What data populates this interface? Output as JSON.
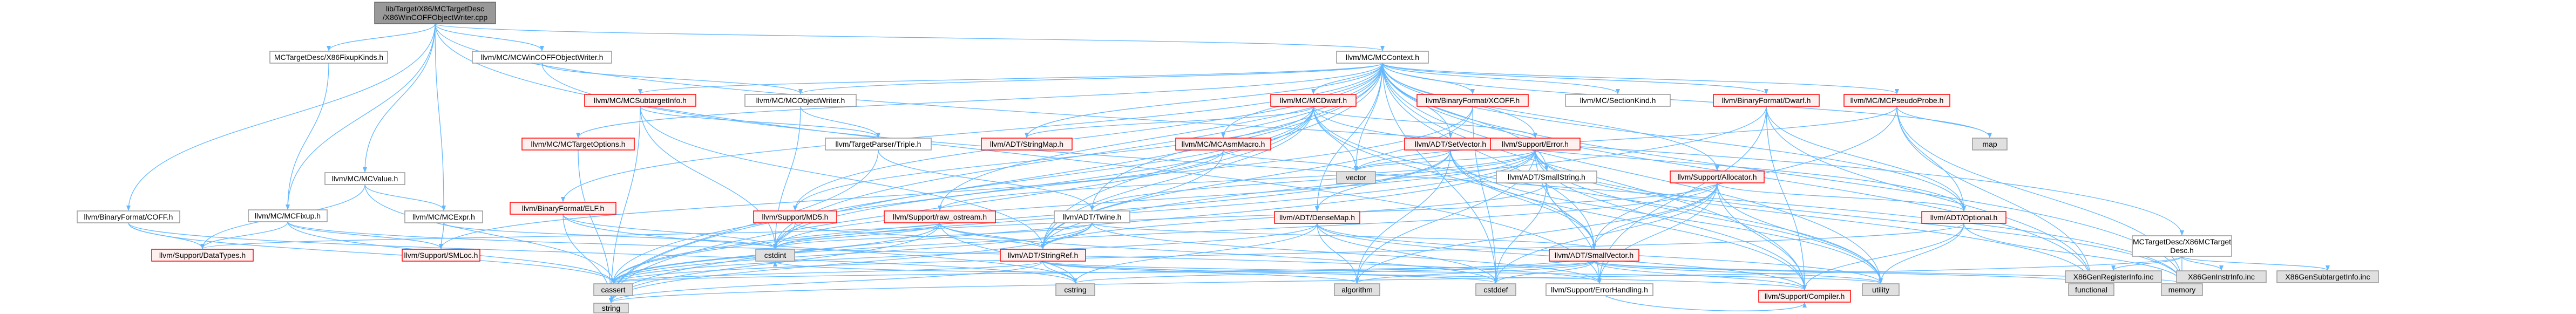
{
  "palette": {
    "root_fill": "#999999",
    "root_stroke": "#666666",
    "root_text": "#000000",
    "normal_fill": "#ffffff",
    "normal_stroke": "#999999",
    "normal_text": "#000000",
    "red_fill": "#fff0f0",
    "red_stroke": "#ff0000",
    "red_text": "#000000",
    "gray_fill": "#e0e0e0",
    "gray_stroke": "#999999",
    "gray_text": "#000000",
    "edge": "#63b8ff"
  },
  "nodes": {
    "root": {
      "lines": [
        "lib/Target/X86/MCTargetDesc",
        "/X86WinCOFFObjectWriter.cpp"
      ],
      "style": "root"
    },
    "mcfixup": {
      "lines": [
        "llvm/MC/MCFixup.h"
      ],
      "style": "normal"
    },
    "x86fixupkinds": {
      "lines": [
        "MCTargetDesc/X86FixupKinds.h"
      ],
      "style": "normal"
    },
    "mcvalue": {
      "lines": [
        "llvm/MC/MCValue.h"
      ],
      "style": "normal"
    },
    "mcwincoff": {
      "lines": [
        "llvm/MC/MCWinCOFFObjectWriter.h"
      ],
      "style": "normal"
    },
    "mccontext": {
      "lines": [
        "llvm/MC/MCContext.h"
      ],
      "style": "normal"
    },
    "x86mctargetdesc": {
      "lines": [
        "MCTargetDesc/X86MCTarget",
        "Desc.h"
      ],
      "style": "normal"
    },
    "binfmt_coff": {
      "lines": [
        "llvm/BinaryFormat/COFF.h"
      ],
      "style": "normal"
    },
    "mcexpr": {
      "lines": [
        "llvm/MC/MCExpr.h"
      ],
      "style": "normal"
    },
    "mcsubtargetinfo": {
      "lines": [
        "llvm/MC/MCSubtargetInfo.h"
      ],
      "style": "red"
    },
    "mctargetoptions": {
      "lines": [
        "llvm/MC/MCTargetOptions.h"
      ],
      "style": "red"
    },
    "mcobjectwriter": {
      "lines": [
        "llvm/MC/MCObjectWriter.h"
      ],
      "style": "normal"
    },
    "triple": {
      "lines": [
        "llvm/TargetParser/Triple.h"
      ],
      "style": "normal"
    },
    "binfmt_elf": {
      "lines": [
        "llvm/BinaryFormat/ELF.h"
      ],
      "style": "red"
    },
    "mcdwarf": {
      "lines": [
        "llvm/MC/MCDwarf.h"
      ],
      "style": "red"
    },
    "stringmap": {
      "lines": [
        "llvm/ADT/StringMap.h"
      ],
      "style": "red"
    },
    "mcasmmacro": {
      "lines": [
        "llvm/MC/MCAsmMacro.h"
      ],
      "style": "red"
    },
    "md5": {
      "lines": [
        "llvm/Support/MD5.h"
      ],
      "style": "red"
    },
    "raw_ostream": {
      "lines": [
        "llvm/Support/raw_ostream.h"
      ],
      "style": "red"
    },
    "binfmt_xcoff": {
      "lines": [
        "llvm/BinaryFormat/XCOFF.h"
      ],
      "style": "red"
    },
    "setvector": {
      "lines": [
        "llvm/ADT/SetVector.h"
      ],
      "style": "red"
    },
    "twine": {
      "lines": [
        "llvm/ADT/Twine.h"
      ],
      "style": "normal"
    },
    "sectionkind": {
      "lines": [
        "llvm/MC/SectionKind.h"
      ],
      "style": "normal"
    },
    "error_h": {
      "lines": [
        "llvm/Support/Error.h"
      ],
      "style": "red"
    },
    "smallstring": {
      "lines": [
        "llvm/ADT/SmallString.h"
      ],
      "style": "normal"
    },
    "binfmt_dwarf": {
      "lines": [
        "llvm/BinaryFormat/Dwarf.h"
      ],
      "style": "red"
    },
    "mcpseudoprobe": {
      "lines": [
        "llvm/MC/MCPseudoProbe.h"
      ],
      "style": "red"
    },
    "allocator": {
      "lines": [
        "llvm/Support/Allocator.h"
      ],
      "style": "red"
    },
    "densemap": {
      "lines": [
        "llvm/ADT/DenseMap.h"
      ],
      "style": "red"
    },
    "stringref": {
      "lines": [
        "llvm/ADT/StringRef.h"
      ],
      "style": "red"
    },
    "smallvector": {
      "lines": [
        "llvm/ADT/SmallVector.h"
      ],
      "style": "red"
    },
    "optional": {
      "lines": [
        "llvm/ADT/Optional.h"
      ],
      "style": "red"
    },
    "datatypes": {
      "lines": [
        "llvm/Support/DataTypes.h"
      ],
      "style": "red"
    },
    "smloc": {
      "lines": [
        "llvm/Support/SMLoc.h"
      ],
      "style": "red"
    },
    "errorhandling": {
      "lines": [
        "llvm/Support/ErrorHandling.h"
      ],
      "style": "normal"
    },
    "compiler": {
      "lines": [
        "llvm/Support/Compiler.h"
      ],
      "style": "red"
    },
    "vector": {
      "lines": [
        "vector"
      ],
      "style": "gray"
    },
    "map": {
      "lines": [
        "map"
      ],
      "style": "gray"
    },
    "cstdint": {
      "lines": [
        "cstdint"
      ],
      "style": "gray"
    },
    "cassert": {
      "lines": [
        "cassert"
      ],
      "style": "gray"
    },
    "cstring": {
      "lines": [
        "cstring"
      ],
      "style": "gray"
    },
    "algorithm": {
      "lines": [
        "algorithm"
      ],
      "style": "gray"
    },
    "cstddef": {
      "lines": [
        "cstddef"
      ],
      "style": "gray"
    },
    "utility": {
      "lines": [
        "utility"
      ],
      "style": "gray"
    },
    "functional": {
      "lines": [
        "functional"
      ],
      "style": "gray"
    },
    "memory": {
      "lines": [
        "memory"
      ],
      "style": "gray"
    },
    "string": {
      "lines": [
        "string"
      ],
      "style": "gray"
    },
    "x86genregisterinfo": {
      "lines": [
        "X86GenRegisterInfo.inc"
      ],
      "style": "gray"
    },
    "x86geninstrinfo": {
      "lines": [
        "X86GenInstrInfo.inc"
      ],
      "style": "gray"
    },
    "x86gensubtargetinfo": {
      "lines": [
        "X86GenSubtargetInfo.inc"
      ],
      "style": "gray"
    }
  },
  "edges": [
    [
      "root",
      "mcfixup"
    ],
    [
      "root",
      "x86fixupkinds"
    ],
    [
      "root",
      "mcvalue"
    ],
    [
      "root",
      "mcwincoff"
    ],
    [
      "root",
      "mccontext"
    ],
    [
      "root",
      "x86mctargetdesc"
    ],
    [
      "root",
      "binfmt_coff"
    ],
    [
      "root",
      "mcexpr"
    ],
    [
      "root",
      "errorhandling"
    ],
    [
      "x86fixupkinds",
      "mcfixup"
    ],
    [
      "mcfixup",
      "datatypes"
    ],
    [
      "mcfixup",
      "smloc"
    ],
    [
      "mcfixup",
      "errorhandling"
    ],
    [
      "mcfixup",
      "cassert"
    ],
    [
      "mcvalue",
      "mcexpr"
    ],
    [
      "mcvalue",
      "datatypes"
    ],
    [
      "mcvalue",
      "cassert"
    ],
    [
      "mcexpr",
      "smloc"
    ],
    [
      "mcexpr",
      "cstdint"
    ],
    [
      "mcwincoff",
      "mcobjectwriter"
    ],
    [
      "mcwincoff",
      "memory"
    ],
    [
      "mccontext",
      "mcsubtargetinfo"
    ],
    [
      "mccontext",
      "mctargetoptions"
    ],
    [
      "mccontext",
      "mcobjectwriter"
    ],
    [
      "mccontext",
      "binfmt_elf"
    ],
    [
      "mccontext",
      "mcdwarf"
    ],
    [
      "mccontext",
      "stringmap"
    ],
    [
      "mccontext",
      "mcasmmacro"
    ],
    [
      "mccontext",
      "md5"
    ],
    [
      "mccontext",
      "raw_ostream"
    ],
    [
      "mccontext",
      "binfmt_xcoff"
    ],
    [
      "mccontext",
      "setvector"
    ],
    [
      "mccontext",
      "twine"
    ],
    [
      "mccontext",
      "sectionkind"
    ],
    [
      "mccontext",
      "error_h"
    ],
    [
      "mccontext",
      "smallstring"
    ],
    [
      "mccontext",
      "binfmt_dwarf"
    ],
    [
      "mccontext",
      "mcpseudoprobe"
    ],
    [
      "mccontext",
      "allocator"
    ],
    [
      "mccontext",
      "densemap"
    ],
    [
      "mccontext",
      "stringref"
    ],
    [
      "mccontext",
      "smallvector"
    ],
    [
      "mccontext",
      "optional"
    ],
    [
      "mccontext",
      "vector"
    ],
    [
      "mccontext",
      "map"
    ],
    [
      "mccontext",
      "cstddef"
    ],
    [
      "mccontext",
      "cstdint"
    ],
    [
      "mccontext",
      "utility"
    ],
    [
      "mccontext",
      "functional"
    ],
    [
      "mccontext",
      "memory"
    ],
    [
      "mccontext",
      "string"
    ],
    [
      "mccontext",
      "compiler"
    ],
    [
      "mcsubtargetinfo",
      "triple"
    ],
    [
      "mcsubtargetinfo",
      "stringref"
    ],
    [
      "mcsubtargetinfo",
      "cstdint"
    ],
    [
      "mcsubtargetinfo",
      "string"
    ],
    [
      "mctargetoptions",
      "string"
    ],
    [
      "mcobjectwriter",
      "triple"
    ],
    [
      "mcobjectwriter",
      "cstdint"
    ],
    [
      "triple",
      "twine"
    ],
    [
      "triple",
      "string"
    ],
    [
      "binfmt_elf",
      "cstdint"
    ],
    [
      "binfmt_elf",
      "cstring"
    ],
    [
      "binfmt_elf",
      "string"
    ],
    [
      "mcdwarf",
      "stringmap"
    ],
    [
      "mcdwarf",
      "md5"
    ],
    [
      "mcdwarf",
      "smallvector"
    ],
    [
      "mcdwarf",
      "stringref"
    ],
    [
      "mcdwarf",
      "error_h"
    ],
    [
      "mcdwarf",
      "vector"
    ],
    [
      "mcdwarf",
      "cassert"
    ],
    [
      "mcdwarf",
      "cstdint"
    ],
    [
      "mcdwarf",
      "string"
    ],
    [
      "mcdwarf",
      "utility"
    ],
    [
      "mcdwarf",
      "optional"
    ],
    [
      "mcasmmacro",
      "smloc"
    ],
    [
      "mcasmmacro",
      "stringref"
    ],
    [
      "mcasmmacro",
      "vector"
    ],
    [
      "md5",
      "stringref"
    ],
    [
      "md5",
      "cstdint"
    ],
    [
      "raw_ostream",
      "stringref"
    ],
    [
      "raw_ostream",
      "datatypes"
    ],
    [
      "raw_ostream",
      "cassert"
    ],
    [
      "raw_ostream",
      "cstddef"
    ],
    [
      "raw_ostream",
      "cstdint"
    ],
    [
      "raw_ostream",
      "cstring"
    ],
    [
      "raw_ostream",
      "string"
    ],
    [
      "binfmt_xcoff",
      "stringref"
    ],
    [
      "binfmt_xcoff",
      "cstddef"
    ],
    [
      "binfmt_xcoff",
      "cstdint"
    ],
    [
      "setvector",
      "densemap"
    ],
    [
      "setvector",
      "smallvector"
    ],
    [
      "setvector",
      "compiler"
    ],
    [
      "setvector",
      "algorithm"
    ],
    [
      "setvector",
      "cassert"
    ],
    [
      "setvector",
      "vector"
    ],
    [
      "setvector",
      "utility"
    ],
    [
      "twine",
      "smallvector"
    ],
    [
      "twine",
      "stringref"
    ],
    [
      "twine",
      "errorhandling"
    ],
    [
      "twine",
      "cassert"
    ],
    [
      "twine",
      "cstdint"
    ],
    [
      "twine",
      "string"
    ],
    [
      "error_h",
      "errorhandling"
    ],
    [
      "error_h",
      "compiler"
    ],
    [
      "error_h",
      "raw_ostream"
    ],
    [
      "error_h",
      "twine"
    ],
    [
      "error_h",
      "algorithm"
    ],
    [
      "error_h",
      "cassert"
    ],
    [
      "error_h",
      "cstdint"
    ],
    [
      "error_h",
      "functional"
    ],
    [
      "error_h",
      "memory"
    ],
    [
      "error_h",
      "string"
    ],
    [
      "error_h",
      "utility"
    ],
    [
      "error_h",
      "vector"
    ],
    [
      "smallstring",
      "smallvector"
    ],
    [
      "smallstring",
      "stringref"
    ],
    [
      "smallstring",
      "cstddef"
    ],
    [
      "binfmt_dwarf",
      "errorhandling"
    ],
    [
      "binfmt_dwarf",
      "compiler"
    ],
    [
      "binfmt_dwarf",
      "optional"
    ],
    [
      "binfmt_dwarf",
      "stringref"
    ],
    [
      "binfmt_dwarf",
      "functional"
    ],
    [
      "mcpseudoprobe",
      "smallvector"
    ],
    [
      "mcpseudoprobe",
      "optional"
    ],
    [
      "mcpseudoprobe",
      "functional"
    ],
    [
      "mcpseudoprobe",
      "memory"
    ],
    [
      "mcpseudoprobe",
      "vector"
    ],
    [
      "mcpseudoprobe",
      "map"
    ],
    [
      "allocator",
      "errorhandling"
    ],
    [
      "allocator",
      "compiler"
    ],
    [
      "allocator",
      "smallvector"
    ],
    [
      "allocator",
      "algorithm"
    ],
    [
      "allocator",
      "cassert"
    ],
    [
      "allocator",
      "cstddef"
    ],
    [
      "allocator",
      "cstdint"
    ],
    [
      "allocator",
      "iterator_none"
    ],
    [
      "allocator",
      "utility"
    ],
    [
      "allocator",
      "optional"
    ],
    [
      "densemap",
      "compiler"
    ],
    [
      "densemap",
      "algorithm"
    ],
    [
      "densemap",
      "cassert"
    ],
    [
      "densemap",
      "cstddef"
    ],
    [
      "densemap",
      "utility"
    ],
    [
      "densemap",
      "cstring"
    ],
    [
      "stringref",
      "compiler"
    ],
    [
      "stringref",
      "algorithm"
    ],
    [
      "stringref",
      "cassert"
    ],
    [
      "stringref",
      "cstddef"
    ],
    [
      "stringref",
      "cstring"
    ],
    [
      "stringref",
      "string"
    ],
    [
      "stringref",
      "utility"
    ],
    [
      "smallvector",
      "compiler"
    ],
    [
      "smallvector",
      "algorithm"
    ],
    [
      "smallvector",
      "cassert"
    ],
    [
      "smallvector",
      "cstddef"
    ],
    [
      "smallvector",
      "cstring"
    ],
    [
      "smallvector",
      "functional"
    ],
    [
      "smallvector",
      "memory"
    ],
    [
      "smallvector",
      "utility"
    ],
    [
      "smallvector",
      "cstdint"
    ],
    [
      "optional",
      "compiler"
    ],
    [
      "optional",
      "cassert"
    ],
    [
      "optional",
      "memory"
    ],
    [
      "optional",
      "utility"
    ],
    [
      "errorhandling",
      "compiler"
    ],
    [
      "x86mctargetdesc",
      "memory"
    ],
    [
      "x86mctargetdesc",
      "string"
    ],
    [
      "x86mctargetdesc",
      "x86genregisterinfo"
    ],
    [
      "x86mctargetdesc",
      "x86geninstrinfo"
    ],
    [
      "x86mctargetdesc",
      "x86gensubtargetinfo"
    ],
    [
      "binfmt_coff",
      "datatypes"
    ],
    [
      "binfmt_coff",
      "cassert"
    ],
    [
      "binfmt_coff",
      "cstring"
    ]
  ]
}
